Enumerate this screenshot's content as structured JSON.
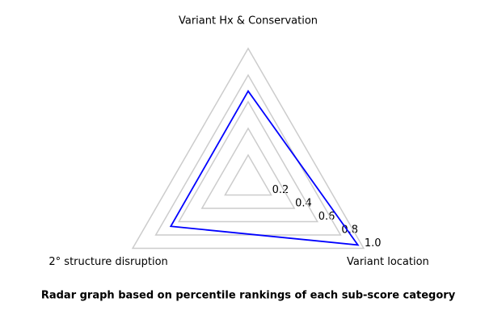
{
  "chart_data": {
    "type": "radar",
    "title": "Radar graph based on percentile rankings of each sub-score category",
    "categories": [
      "Variant Hx & Conservation",
      "2° structure disruption",
      "Variant location"
    ],
    "series": [
      {
        "name": null,
        "color": "#0000ff",
        "values": [
          0.68,
          0.67,
          0.95
        ]
      }
    ],
    "rlim": [
      0,
      1
    ],
    "rticks": [
      0.2,
      0.4,
      0.6,
      0.8,
      {
        "value": 1,
        "label": "1.0"
      }
    ],
    "grid": true,
    "grid_color": "#cccccc"
  }
}
